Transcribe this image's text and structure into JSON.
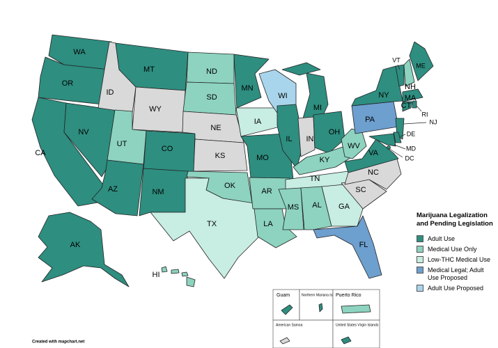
{
  "map": {
    "no_data_color": "#d9d9d9",
    "legend": {
      "title": "Marijuana Legalization and Pending Legislation",
      "entries": [
        {
          "label": "Adult Use",
          "color": "#2e8e80"
        },
        {
          "label": "Medical Use Only",
          "color": "#8dd3bf"
        },
        {
          "label": "Low-THC Medical Use",
          "color": "#c8ede2"
        },
        {
          "label": "Medical Legal; Adult Use Proposed",
          "color": "#6d9fcf"
        },
        {
          "label": "Adult Use Proposed",
          "color": "#a9d5ec"
        }
      ]
    },
    "states": [
      {
        "label": "WA",
        "category": 0
      },
      {
        "label": "OR",
        "category": 0
      },
      {
        "label": "CA",
        "category": 0
      },
      {
        "label": "NV",
        "category": 0
      },
      {
        "label": "ID",
        "category": null
      },
      {
        "label": "MT",
        "category": 0
      },
      {
        "label": "WY",
        "category": null
      },
      {
        "label": "UT",
        "category": 1
      },
      {
        "label": "CO",
        "category": 0
      },
      {
        "label": "AZ",
        "category": 0
      },
      {
        "label": "NM",
        "category": 0
      },
      {
        "label": "ND",
        "category": 1
      },
      {
        "label": "SD",
        "category": 1
      },
      {
        "label": "NE",
        "category": null
      },
      {
        "label": "KS",
        "category": null
      },
      {
        "label": "OK",
        "category": 1
      },
      {
        "label": "TX",
        "category": 2
      },
      {
        "label": "MN",
        "category": 0
      },
      {
        "label": "IA",
        "category": 2
      },
      {
        "label": "MO",
        "category": 0
      },
      {
        "label": "AR",
        "category": 1
      },
      {
        "label": "LA",
        "category": 1
      },
      {
        "label": "WI",
        "category": 4
      },
      {
        "label": "IL",
        "category": 0
      },
      {
        "label": "MI",
        "category": 0
      },
      {
        "label": "IN",
        "category": null
      },
      {
        "label": "OH",
        "category": 0
      },
      {
        "label": "KY",
        "category": 1
      },
      {
        "label": "TN",
        "category": 2
      },
      {
        "label": "MS",
        "category": 1
      },
      {
        "label": "AL",
        "category": 1
      },
      {
        "label": "GA",
        "category": 2
      },
      {
        "label": "FL",
        "category": 3
      },
      {
        "label": "SC",
        "category": null
      },
      {
        "label": "NC",
        "category": null
      },
      {
        "label": "VA",
        "category": 0
      },
      {
        "label": "WV",
        "category": 1
      },
      {
        "label": "PA",
        "category": 3
      },
      {
        "label": "NY",
        "category": 0
      },
      {
        "label": "VT",
        "category": 0
      },
      {
        "label": "NH",
        "category": 1
      },
      {
        "label": "ME",
        "category": 0
      },
      {
        "label": "MA",
        "category": 0
      },
      {
        "label": "CT",
        "category": 0
      },
      {
        "label": "RI",
        "category": 0
      },
      {
        "label": "NJ",
        "category": 0
      },
      {
        "label": "DE",
        "category": 0
      },
      {
        "label": "MD",
        "category": 0
      },
      {
        "label": "DC",
        "category": 0
      },
      {
        "label": "HI",
        "category": 1
      },
      {
        "label": "AK",
        "category": 0
      }
    ],
    "territories": [
      {
        "label": "Guam",
        "category": 0
      },
      {
        "label": "Northern Mariana Islands",
        "category": 0
      },
      {
        "label": "Puerto Rico",
        "category": 1
      },
      {
        "label": "American Samoa",
        "category": null
      },
      {
        "label": "United States Virgin Islands",
        "category": 0
      }
    ],
    "credit": "Created with mapchart.net"
  }
}
